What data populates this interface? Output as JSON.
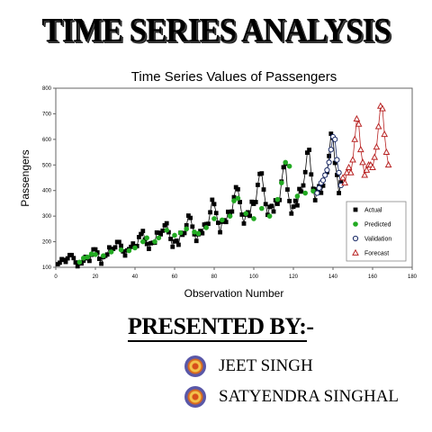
{
  "header": {
    "title": "TIME SERIES ANALYSIS"
  },
  "presenters": {
    "heading": "PRESENTED BY:-",
    "names": [
      "JEET SINGH",
      "SATYENDRA SINGHAL"
    ]
  },
  "colors": {
    "actual": "#000000",
    "predicted": "#22aa22",
    "validation": "#1a2a66",
    "forecast": "#b82222"
  },
  "chart_data": {
    "type": "scatter",
    "title": "Time Series Values of Passengers",
    "xlabel": "Observation Number",
    "ylabel": "Passengers",
    "xlim": [
      0,
      180
    ],
    "ylim": [
      100,
      800
    ],
    "xticks": [
      0,
      20,
      40,
      60,
      80,
      100,
      120,
      140,
      160,
      180
    ],
    "yticks": [
      100,
      200,
      300,
      400,
      500,
      600,
      700,
      800
    ],
    "grid": false,
    "legend_position": "bottom-right",
    "series": [
      {
        "name": "Actual",
        "marker": "square",
        "x_start": 1,
        "values": [
          112,
          118,
          132,
          129,
          121,
          135,
          148,
          148,
          136,
          119,
          104,
          118,
          115,
          126,
          141,
          135,
          125,
          149,
          170,
          170,
          158,
          133,
          114,
          140,
          145,
          150,
          178,
          163,
          172,
          178,
          199,
          199,
          184,
          162,
          146,
          166,
          171,
          180,
          193,
          181,
          183,
          218,
          230,
          242,
          209,
          191,
          172,
          194,
          196,
          196,
          236,
          235,
          229,
          243,
          264,
          272,
          237,
          211,
          180,
          201,
          204,
          188,
          235,
          227,
          234,
          264,
          302,
          293,
          259,
          229,
          203,
          229,
          242,
          233,
          267,
          269,
          270,
          315,
          364,
          347,
          312,
          274,
          237,
          278,
          284,
          277,
          317,
          313,
          318,
          374,
          413,
          405,
          355,
          306,
          271,
          306,
          315,
          301,
          356,
          348,
          355,
          422,
          465,
          467,
          404,
          347,
          305,
          336,
          340,
          318,
          362,
          348,
          363,
          435,
          491,
          505,
          404,
          359,
          310,
          337,
          360,
          342,
          406,
          396,
          420,
          472,
          548,
          559,
          463,
          407,
          362,
          405,
          417,
          391,
          419,
          461,
          472,
          535,
          622,
          606,
          508,
          461,
          390,
          432
        ]
      },
      {
        "name": "Predicted",
        "marker": "circle",
        "x": [
          12,
          14,
          16,
          18,
          20,
          24,
          28,
          33,
          37,
          40,
          44,
          46,
          50,
          52,
          56,
          60,
          63,
          66,
          70,
          72,
          76,
          80,
          84,
          88,
          90,
          92,
          96,
          100,
          104,
          108,
          112,
          114,
          116,
          118,
          122,
          126,
          130
        ],
        "values": [
          120,
          136,
          140,
          152,
          150,
          145,
          160,
          168,
          165,
          176,
          200,
          215,
          200,
          215,
          245,
          225,
          235,
          250,
          238,
          232,
          255,
          290,
          285,
          300,
          360,
          370,
          310,
          290,
          330,
          300,
          365,
          430,
          510,
          495,
          378,
          390,
          398
        ]
      },
      {
        "name": "Validation",
        "marker": "circle-open",
        "x": [
          132,
          133,
          134,
          135,
          136,
          137,
          138,
          139,
          140,
          141,
          142,
          143,
          144
        ],
        "values": [
          390,
          410,
          430,
          440,
          460,
          480,
          510,
          560,
          610,
          600,
          520,
          470,
          420
        ]
      },
      {
        "name": "Forecast",
        "marker": "triangle-open",
        "x": [
          145,
          146,
          147,
          148,
          149,
          150,
          151,
          152,
          153,
          154,
          155,
          156,
          157,
          158,
          159,
          160,
          161,
          162,
          163,
          164,
          165,
          166,
          167,
          168
        ],
        "values": [
          450,
          430,
          470,
          490,
          470,
          520,
          600,
          680,
          660,
          560,
          510,
          460,
          480,
          500,
          500,
          490,
          530,
          570,
          650,
          730,
          720,
          620,
          550,
          500
        ]
      }
    ]
  }
}
